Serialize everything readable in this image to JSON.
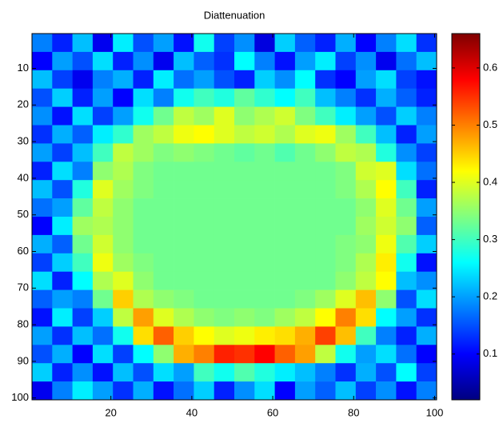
{
  "chart_data": {
    "type": "heatmap",
    "title": "Diattenuation",
    "colormap": "jet",
    "y_reversed": true,
    "x": [
      3,
      8,
      13,
      18,
      23,
      28,
      33,
      38,
      43,
      48,
      53,
      58,
      63,
      68,
      73,
      78,
      83,
      88,
      93,
      98
    ],
    "y": [
      3,
      8,
      13,
      18,
      23,
      28,
      33,
      38,
      43,
      48,
      53,
      58,
      63,
      68,
      73,
      78,
      83,
      88,
      93,
      98
    ],
    "z": [
      [
        0.18,
        0.12,
        0.22,
        0.09,
        0.25,
        0.15,
        0.2,
        0.11,
        0.27,
        0.14,
        0.19,
        0.08,
        0.23,
        0.16,
        0.12,
        0.21,
        0.1,
        0.18,
        0.24,
        0.13
      ],
      [
        0.1,
        0.2,
        0.15,
        0.24,
        0.12,
        0.19,
        0.09,
        0.22,
        0.16,
        0.13,
        0.26,
        0.18,
        0.11,
        0.2,
        0.25,
        0.14,
        0.19,
        0.09,
        0.17,
        0.22
      ],
      [
        0.22,
        0.14,
        0.09,
        0.18,
        0.21,
        0.12,
        0.25,
        0.17,
        0.2,
        0.15,
        0.12,
        0.23,
        0.19,
        0.26,
        0.13,
        0.1,
        0.2,
        0.24,
        0.14,
        0.11
      ],
      [
        0.15,
        0.23,
        0.12,
        0.2,
        0.1,
        0.24,
        0.18,
        0.27,
        0.3,
        0.28,
        0.32,
        0.29,
        0.26,
        0.3,
        0.22,
        0.18,
        0.13,
        0.21,
        0.16,
        0.12
      ],
      [
        0.19,
        0.11,
        0.24,
        0.14,
        0.2,
        0.27,
        0.33,
        0.38,
        0.36,
        0.4,
        0.35,
        0.37,
        0.39,
        0.34,
        0.3,
        0.25,
        0.2,
        0.15,
        0.23,
        0.18
      ],
      [
        0.13,
        0.21,
        0.16,
        0.25,
        0.29,
        0.36,
        0.38,
        0.41,
        0.42,
        0.4,
        0.38,
        0.39,
        0.37,
        0.4,
        0.41,
        0.36,
        0.3,
        0.22,
        0.12,
        0.2
      ],
      [
        0.2,
        0.14,
        0.22,
        0.3,
        0.38,
        0.36,
        0.34,
        0.35,
        0.34,
        0.33,
        0.32,
        0.33,
        0.31,
        0.33,
        0.35,
        0.38,
        0.37,
        0.28,
        0.19,
        0.14
      ],
      [
        0.12,
        0.24,
        0.18,
        0.35,
        0.37,
        0.34,
        0.33,
        0.33,
        0.33,
        0.33,
        0.33,
        0.33,
        0.33,
        0.33,
        0.33,
        0.34,
        0.39,
        0.4,
        0.24,
        0.17
      ],
      [
        0.22,
        0.15,
        0.28,
        0.4,
        0.36,
        0.34,
        0.33,
        0.33,
        0.33,
        0.33,
        0.33,
        0.33,
        0.33,
        0.33,
        0.33,
        0.34,
        0.37,
        0.42,
        0.3,
        0.12
      ],
      [
        0.17,
        0.2,
        0.32,
        0.38,
        0.35,
        0.33,
        0.33,
        0.33,
        0.33,
        0.33,
        0.33,
        0.33,
        0.33,
        0.33,
        0.33,
        0.33,
        0.35,
        0.4,
        0.33,
        0.2
      ],
      [
        0.1,
        0.25,
        0.36,
        0.37,
        0.35,
        0.33,
        0.33,
        0.33,
        0.33,
        0.33,
        0.33,
        0.33,
        0.33,
        0.33,
        0.33,
        0.33,
        0.36,
        0.39,
        0.35,
        0.16
      ],
      [
        0.21,
        0.16,
        0.33,
        0.39,
        0.35,
        0.33,
        0.33,
        0.33,
        0.33,
        0.33,
        0.33,
        0.33,
        0.33,
        0.33,
        0.33,
        0.34,
        0.35,
        0.41,
        0.31,
        0.23
      ],
      [
        0.14,
        0.23,
        0.3,
        0.41,
        0.36,
        0.34,
        0.33,
        0.33,
        0.33,
        0.33,
        0.33,
        0.33,
        0.33,
        0.33,
        0.33,
        0.34,
        0.37,
        0.43,
        0.27,
        0.11
      ],
      [
        0.24,
        0.12,
        0.26,
        0.37,
        0.4,
        0.35,
        0.33,
        0.33,
        0.33,
        0.33,
        0.33,
        0.33,
        0.33,
        0.33,
        0.33,
        0.35,
        0.38,
        0.42,
        0.22,
        0.19
      ],
      [
        0.16,
        0.2,
        0.18,
        0.33,
        0.45,
        0.37,
        0.35,
        0.34,
        0.33,
        0.33,
        0.33,
        0.33,
        0.33,
        0.34,
        0.36,
        0.4,
        0.46,
        0.35,
        0.15,
        0.24
      ],
      [
        0.11,
        0.25,
        0.14,
        0.23,
        0.38,
        0.48,
        0.4,
        0.37,
        0.35,
        0.34,
        0.35,
        0.34,
        0.36,
        0.38,
        0.42,
        0.5,
        0.44,
        0.26,
        0.2,
        0.13
      ],
      [
        0.2,
        0.13,
        0.22,
        0.17,
        0.27,
        0.44,
        0.52,
        0.45,
        0.42,
        0.4,
        0.41,
        0.43,
        0.44,
        0.47,
        0.54,
        0.46,
        0.3,
        0.18,
        0.12,
        0.21
      ],
      [
        0.15,
        0.21,
        0.1,
        0.24,
        0.14,
        0.26,
        0.35,
        0.47,
        0.5,
        0.56,
        0.55,
        0.58,
        0.52,
        0.48,
        0.38,
        0.27,
        0.2,
        0.24,
        0.17,
        0.1
      ],
      [
        0.23,
        0.12,
        0.19,
        0.11,
        0.22,
        0.15,
        0.24,
        0.2,
        0.3,
        0.27,
        0.31,
        0.28,
        0.25,
        0.22,
        0.18,
        0.13,
        0.21,
        0.15,
        0.26,
        0.14
      ],
      [
        0.09,
        0.18,
        0.25,
        0.2,
        0.13,
        0.21,
        0.11,
        0.17,
        0.23,
        0.12,
        0.19,
        0.24,
        0.1,
        0.2,
        0.16,
        0.22,
        0.14,
        0.19,
        0.11,
        0.18
      ]
    ],
    "xlim": [
      0.5,
      100.5
    ],
    "ylim": [
      0.5,
      100.5
    ],
    "xticks": [
      20,
      40,
      60,
      80,
      100
    ],
    "yticks": [
      10,
      20,
      30,
      40,
      50,
      60,
      70,
      80,
      90,
      100
    ],
    "clim": [
      0.02,
      0.66
    ],
    "cticks": [
      0.1,
      0.2,
      0.3,
      0.4,
      0.5,
      0.6
    ]
  }
}
